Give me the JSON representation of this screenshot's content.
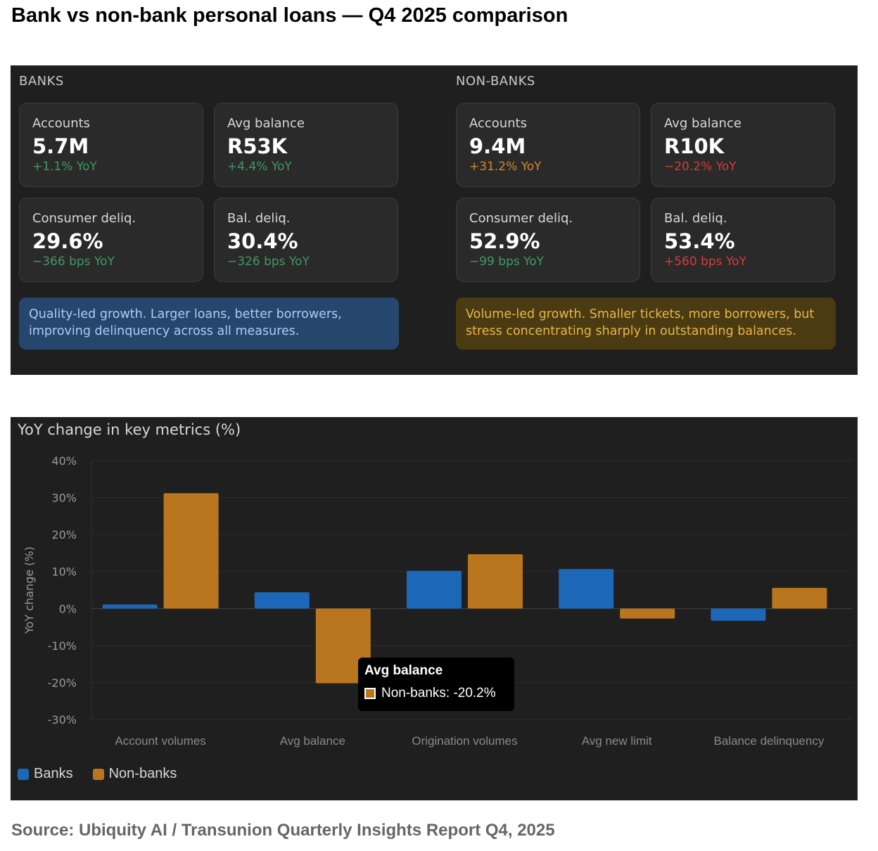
{
  "page": {
    "title": "Bank vs non-bank personal loans — Q4 2025 comparison",
    "source": "Source: Ubiquity AI / Transunion Quarterly Insights Report Q4, 2025"
  },
  "colors": {
    "positive_green": "#3f9a63",
    "warning_orange": "#d58a2a",
    "negative_red": "#d83a3a",
    "banks_blue": "#1d67b8",
    "nonbanks_orange": "#b9761e"
  },
  "banks": {
    "label": "BANKS",
    "cards": [
      {
        "label": "Accounts",
        "value": "5.7M",
        "change": "+1.1% YoY",
        "tone": "positive"
      },
      {
        "label": "Avg balance",
        "value": "R53K",
        "change": "+4.4% YoY",
        "tone": "positive"
      },
      {
        "label": "Consumer deliq.",
        "value": "29.6%",
        "change": "−366 bps YoY",
        "tone": "positive"
      },
      {
        "label": "Bal. deliq.",
        "value": "30.4%",
        "change": "−326 bps YoY",
        "tone": "positive"
      }
    ],
    "insight": "Quality-led growth. Larger loans, better borrowers, improving delinquency across all measures."
  },
  "nonbanks": {
    "label": "NON-BANKS",
    "cards": [
      {
        "label": "Accounts",
        "value": "9.4M",
        "change": "+31.2% YoY",
        "tone": "warning"
      },
      {
        "label": "Avg balance",
        "value": "R10K",
        "change": "−20.2% YoY",
        "tone": "negative"
      },
      {
        "label": "Consumer deliq.",
        "value": "52.9%",
        "change": "−99 bps YoY",
        "tone": "positive"
      },
      {
        "label": "Bal. deliq.",
        "value": "53.4%",
        "change": "+560 bps YoY",
        "tone": "negative"
      }
    ],
    "insight": "Volume-led growth. Smaller tickets, more borrowers, but stress concentrating sharply in outstanding balances."
  },
  "chart_data": {
    "type": "bar",
    "title": "YoY change in key metrics (%)",
    "xlabel": "",
    "ylabel": "YoY change (%)",
    "categories": [
      "Account volumes",
      "Avg balance",
      "Origination volumes",
      "Avg new limit",
      "Balance delinquency"
    ],
    "series": [
      {
        "name": "Banks",
        "values": [
          1.1,
          4.4,
          10.2,
          10.7,
          -3.3
        ]
      },
      {
        "name": "Non-banks",
        "values": [
          31.2,
          -20.2,
          14.7,
          -2.7,
          5.6
        ]
      }
    ],
    "ylim": [
      -30,
      40
    ],
    "yticks": [
      40,
      30,
      20,
      10,
      0,
      -10,
      -20,
      -30
    ],
    "ytick_labels": [
      "40%",
      "30%",
      "20%",
      "10%",
      "0%",
      "-10%",
      "-20%",
      "-30%"
    ],
    "grid": true,
    "legend": "bottom-left",
    "tooltip": {
      "title": "Avg balance",
      "text": "Non-banks: -20.2%"
    }
  }
}
